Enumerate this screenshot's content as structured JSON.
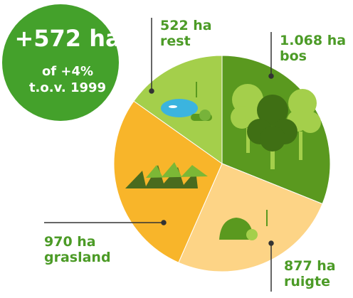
{
  "chart_data": {
    "type": "pie",
    "annotations": [
      "+572 ha",
      "of +4%",
      "t.o.v. 1999"
    ],
    "categories": [
      "bos",
      "ruigte",
      "grasland",
      "rest"
    ],
    "values": [
      1068,
      877,
      970,
      522
    ],
    "value_labels": [
      "1.068 ha",
      "877 ha",
      "970 ha",
      "522 ha"
    ],
    "colors": [
      "#5a991f",
      "#fdd486",
      "#f8b52a",
      "#a4cf4b"
    ]
  }
}
